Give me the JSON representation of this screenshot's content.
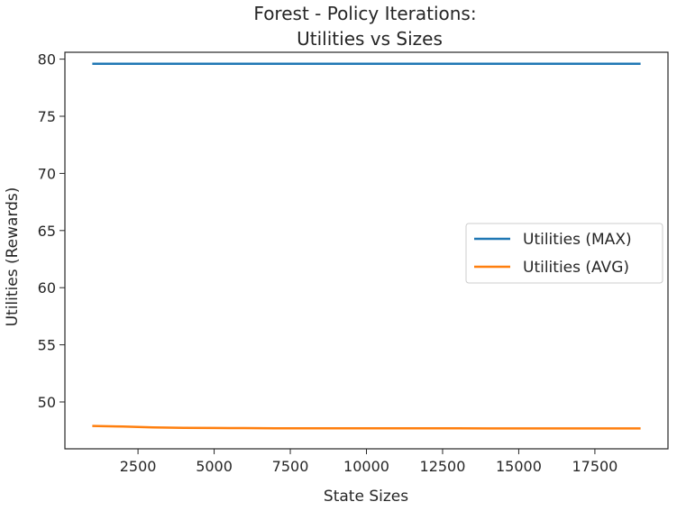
{
  "chart_data": {
    "type": "line",
    "title_lines": [
      "Forest - Policy Iterations:",
      "Utilities vs Sizes"
    ],
    "xlabel": "State Sizes",
    "ylabel": "Utilities (Rewards)",
    "xlim": [
      100,
      19900
    ],
    "ylim": [
      45.9,
      80.6
    ],
    "xticks": [
      2500,
      5000,
      7500,
      10000,
      12500,
      15000,
      17500
    ],
    "yticks": [
      50,
      55,
      60,
      65,
      70,
      75,
      80
    ],
    "grid": false,
    "legend_position": "center-right",
    "x": [
      1000,
      2000,
      3000,
      4000,
      5000,
      6000,
      7000,
      8000,
      9000,
      10000,
      11000,
      12000,
      13000,
      14000,
      15000,
      16000,
      17000,
      18000,
      19000
    ],
    "series": [
      {
        "name": "Utilities (MAX)",
        "color": "#1f77b4",
        "values": [
          79.6,
          79.6,
          79.6,
          79.6,
          79.6,
          79.6,
          79.6,
          79.6,
          79.6,
          79.6,
          79.6,
          79.6,
          79.6,
          79.6,
          79.6,
          79.6,
          79.6,
          79.6,
          79.6
        ]
      },
      {
        "name": "Utilities (AVG)",
        "color": "#ff7f0e",
        "values": [
          47.9,
          47.85,
          47.78,
          47.74,
          47.72,
          47.71,
          47.7,
          47.7,
          47.7,
          47.69,
          47.69,
          47.69,
          47.69,
          47.68,
          47.68,
          47.68,
          47.68,
          47.68,
          47.68
        ]
      }
    ]
  }
}
